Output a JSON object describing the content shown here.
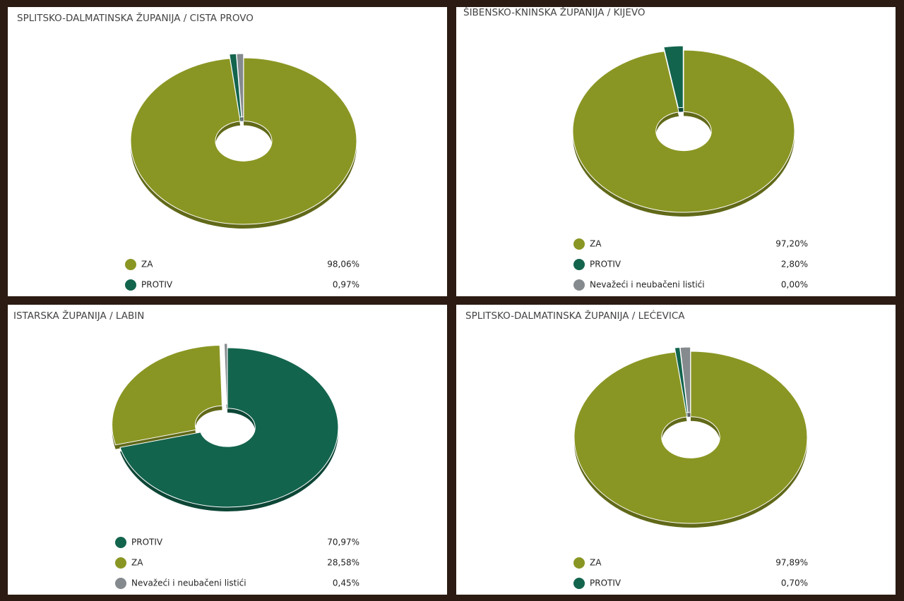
{
  "chart_data": [
    {
      "type": "pie",
      "title": "SPLITSKO-DALMATINSKA ŽUPANIJA / CISTA PROVO",
      "categories": [
        "ZA",
        "PROTIV",
        null
      ],
      "values": [
        98.06,
        0.97,
        0.97
      ],
      "value_labels": [
        "98,06%",
        "0,97%",
        null
      ],
      "colors": [
        "#8a9623",
        "#13644d",
        "#858a8e"
      ]
    },
    {
      "type": "pie",
      "title": "ŠIBENSKO-KNINSKA ŽUPANIJA / KIJEVO",
      "categories": [
        "ZA",
        "PROTIV",
        "Nevažeći i neubačeni listići"
      ],
      "values": [
        97.2,
        2.8,
        0
      ],
      "value_labels": [
        "97,20%",
        "2,80%",
        "0,00%"
      ],
      "colors": [
        "#8a9623",
        "#13644d",
        "#858a8e"
      ]
    },
    {
      "type": "pie",
      "title": "ISTARSKA ŽUPANIJA / LABIN",
      "categories": [
        "PROTIV",
        "ZA",
        "Nevažeći i neubačeni listići"
      ],
      "values": [
        70.97,
        28.58,
        0.45
      ],
      "value_labels": [
        "70,97%",
        "28,58%",
        "0,45%"
      ],
      "colors": [
        "#13644d",
        "#8a9623",
        "#858a8e"
      ]
    },
    {
      "type": "pie",
      "title": "SPLITSKO-DALMATINSKA ŽUPANIJA / LEĆEVICA",
      "categories": [
        "ZA",
        "PROTIV",
        null
      ],
      "values": [
        97.89,
        0.7,
        1.41
      ],
      "value_labels": [
        "97,89%",
        "0,70%",
        null
      ],
      "colors": [
        "#8a9623",
        "#13644d",
        "#858a8e"
      ]
    }
  ]
}
